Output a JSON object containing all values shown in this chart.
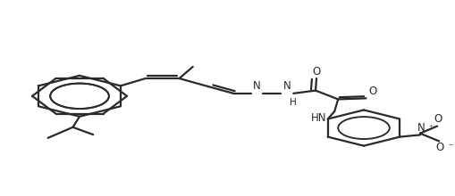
{
  "bg_color": "#ffffff",
  "line_color": "#2a2a2a",
  "line_width": 1.6,
  "fig_width": 5.1,
  "fig_height": 2.2,
  "dpi": 100,
  "font_size": 8.5,
  "xlim": [
    0,
    10
  ],
  "ylim": [
    0,
    10
  ]
}
